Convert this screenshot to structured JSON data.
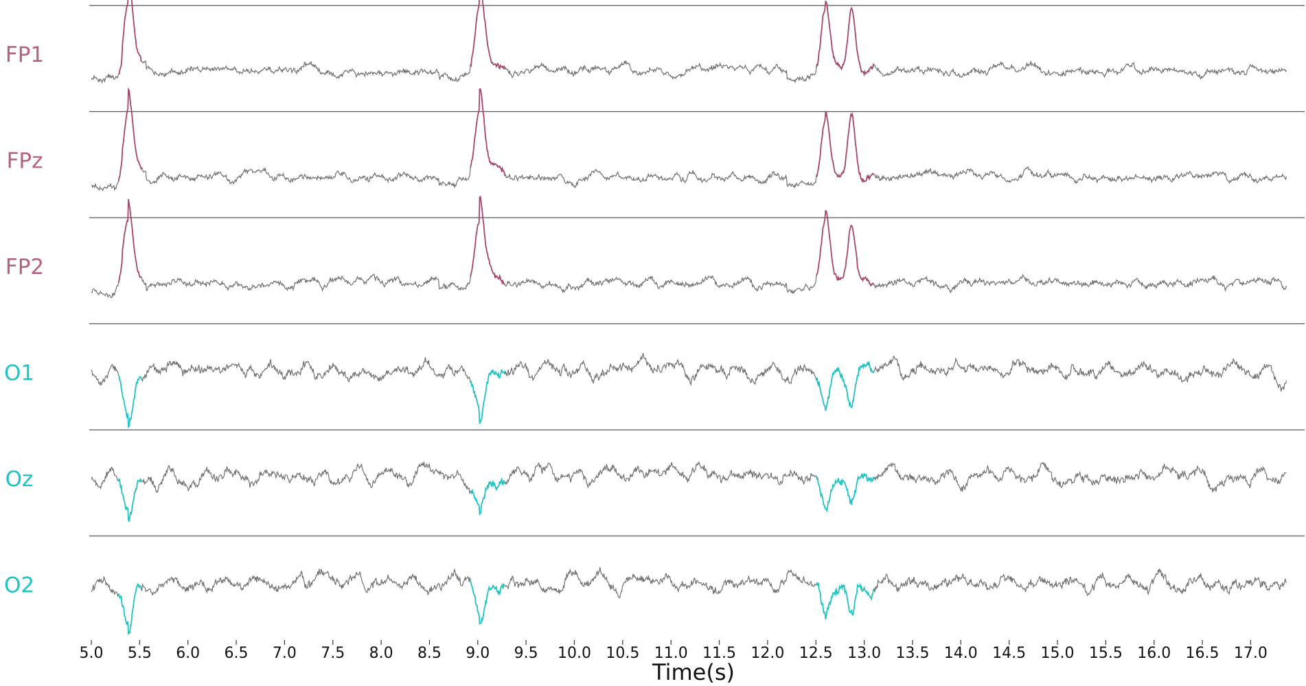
{
  "chart_data": {
    "type": "line",
    "xlabel": "Time(s)",
    "xlim": [
      5.0,
      17.5
    ],
    "x_ticks": [
      "5.0",
      "5.5",
      "6.0",
      "6.5",
      "7.0",
      "7.5",
      "8.0",
      "8.5",
      "9.0",
      "9.5",
      "10.0",
      "10.5",
      "11.0",
      "11.5",
      "12.0",
      "12.5",
      "13.0",
      "13.5",
      "14.0",
      "14.5",
      "15.0",
      "15.5",
      "16.0",
      "16.5",
      "17.0"
    ],
    "events": [
      {
        "start": 5.28,
        "end": 5.52,
        "amplitude": 1.0
      },
      {
        "start": 8.92,
        "end": 9.28,
        "amplitude": 1.0
      },
      {
        "start": 12.5,
        "end": 13.1,
        "amplitude": 1.0,
        "double": true
      }
    ],
    "series": [
      {
        "name": "FP1",
        "group": "frontal",
        "label_color": "#b5627f",
        "event_color": "#a5456b",
        "polarity": 1
      },
      {
        "name": "FPz",
        "group": "frontal",
        "label_color": "#b5627f",
        "event_color": "#a5456b",
        "polarity": 1
      },
      {
        "name": "FP2",
        "group": "frontal",
        "label_color": "#b5627f",
        "event_color": "#a5456b",
        "polarity": 1
      },
      {
        "name": "O1",
        "group": "occipital",
        "label_color": "#1fc3c3",
        "event_color": "#1fc3c3",
        "polarity": -1
      },
      {
        "name": "Oz",
        "group": "occipital",
        "label_color": "#1fc3c3",
        "event_color": "#1fc3c3",
        "polarity": -1
      },
      {
        "name": "O2",
        "group": "occipital",
        "label_color": "#1fc3c3",
        "event_color": "#1fc3c3",
        "polarity": -1
      }
    ],
    "line_color": "#707070",
    "grid": false
  }
}
